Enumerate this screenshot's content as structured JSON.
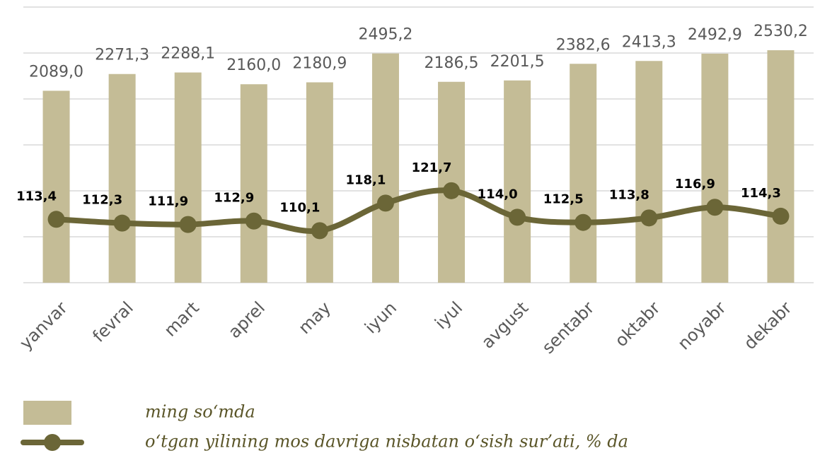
{
  "chart_data": {
    "type": "bar",
    "categories": [
      "yanvar",
      "fevral",
      "mart",
      "aprel",
      "may",
      "iyun",
      "iyul",
      "avgust",
      "sentabr",
      "oktabr",
      "noyabr",
      "dekabr"
    ],
    "ylim": [
      0,
      3000
    ],
    "yticks": [
      0,
      500,
      1000,
      1500,
      2000,
      2500,
      3000
    ],
    "grid": true,
    "y2lim": [
      95,
      175
    ],
    "series": [
      {
        "name": "ming so‘mda",
        "type": "bar",
        "color": "#c4bc96",
        "values": [
          2089.0,
          2271.3,
          2288.1,
          2160.0,
          2180.9,
          2495.2,
          2186.5,
          2201.5,
          2382.6,
          2413.3,
          2492.9,
          2530.2
        ],
        "value_labels": [
          "2089,0",
          "2271,3",
          "2288,1",
          "2160,0",
          "2180,9",
          "2495,2",
          "2186,5",
          "2201,5",
          "2382,6",
          "2413,3",
          "2492,9",
          "2530,2"
        ]
      },
      {
        "name": "o‘tgan yilining mos davriga nisbatan o‘sish sur’ati, % da",
        "type": "line",
        "color": "#6b6637",
        "axis": "y2",
        "values": [
          113.4,
          112.3,
          111.9,
          112.9,
          110.1,
          118.1,
          121.7,
          114.0,
          112.5,
          113.8,
          116.9,
          114.3
        ],
        "value_labels": [
          "113,4",
          "112,3",
          "111,9",
          "112,9",
          "110,1",
          "118,1",
          "121,7",
          "114,0",
          "112,5",
          "113,8",
          "116,9",
          "114,3"
        ]
      }
    ]
  }
}
